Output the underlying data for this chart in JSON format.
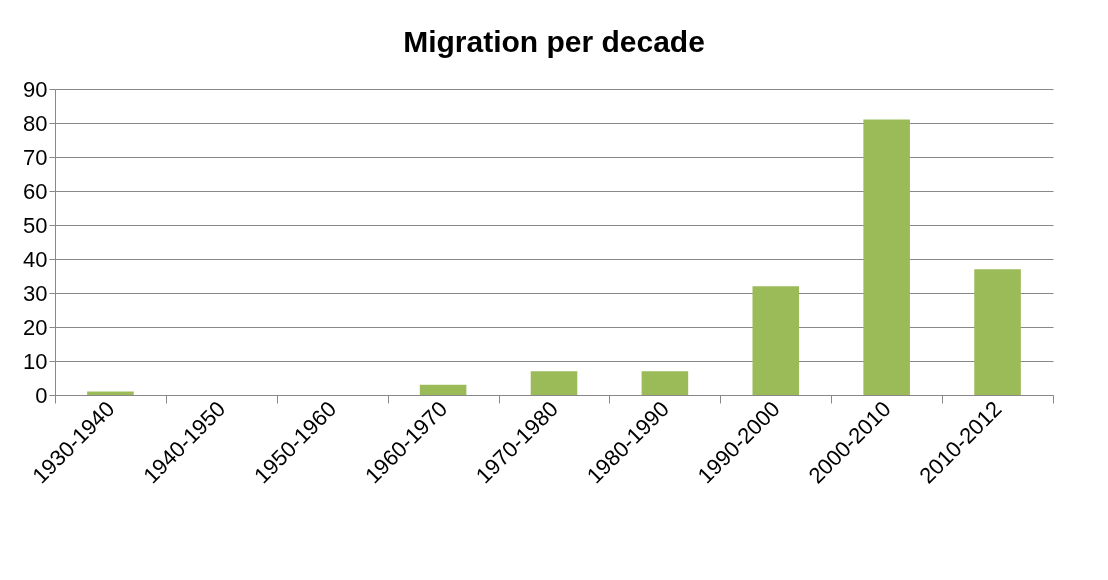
{
  "chart_data": {
    "type": "bar",
    "title": "Migration per decade",
    "categories": [
      "1930-1940",
      "1940-1950",
      "1950-1960",
      "1960-1970",
      "1970-1980",
      "1980-1990",
      "1990-2000",
      "2000-2010",
      "2010-2012"
    ],
    "values": [
      1,
      0,
      0,
      3,
      7,
      7,
      32,
      81,
      37
    ],
    "color": "#9bbb59",
    "ylim": [
      0,
      90
    ],
    "yticks": [
      0,
      10,
      20,
      30,
      40,
      50,
      60,
      70,
      80,
      90
    ],
    "grid": "y"
  }
}
